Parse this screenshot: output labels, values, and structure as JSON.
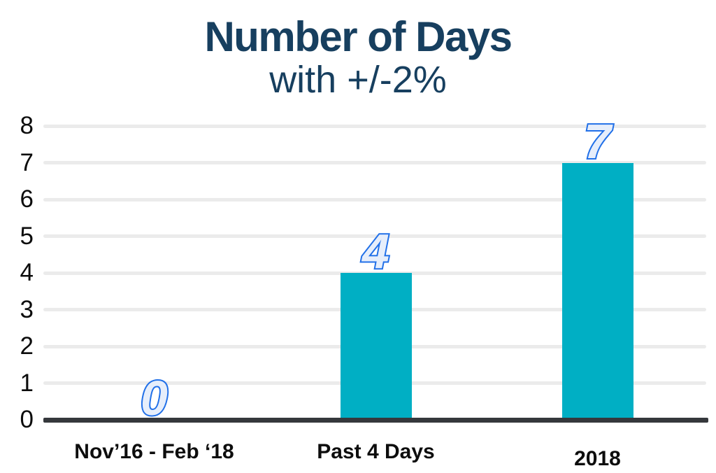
{
  "chart_data": {
    "type": "bar",
    "title": "Number of Days",
    "subtitle": "with +/-2%",
    "categories": [
      "Nov’16 - Feb ‘18",
      "Past 4 Days",
      "2018"
    ],
    "values": [
      0,
      4,
      7
    ],
    "data_labels": [
      "0",
      "4",
      "7"
    ],
    "xlabel": "",
    "ylabel": "",
    "ylim": [
      0,
      8
    ],
    "yticks": [
      0,
      1,
      2,
      3,
      4,
      5,
      6,
      7,
      8
    ],
    "grid": true,
    "legend": false,
    "colors": {
      "bar": "#00afc4",
      "title_text": "#173f5f",
      "data_label_fill": "#e6eefb",
      "data_label_stroke": "#2170e8",
      "gridline": "#ebebeb",
      "axis_line": "#35383c",
      "tick_text": "#0c0c0c",
      "category_text": "#0d0d0d",
      "background": "#ffffff"
    }
  }
}
